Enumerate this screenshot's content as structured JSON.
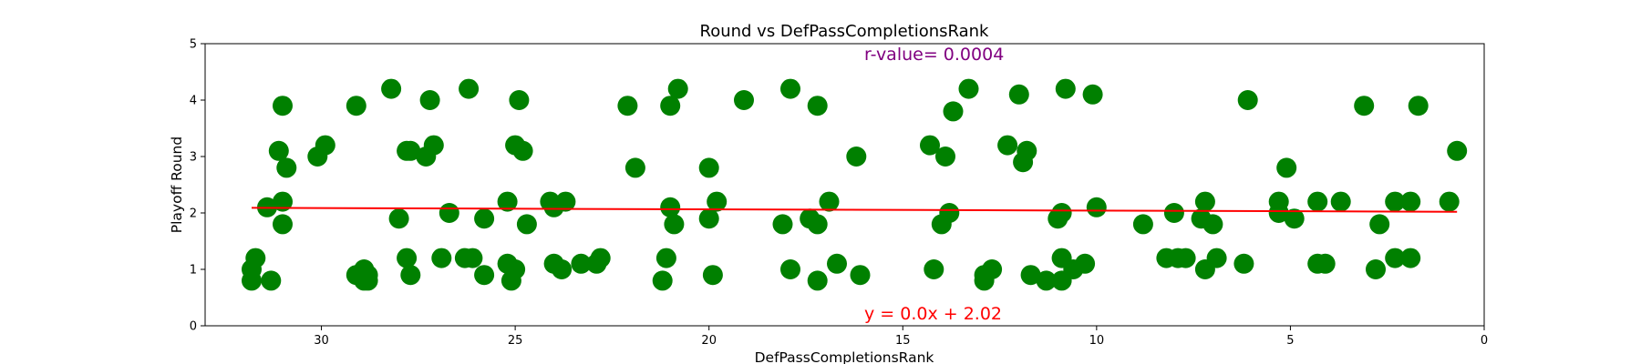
{
  "chart_data": {
    "type": "scatter",
    "title": "Round vs DefPassCompletionsRank",
    "xlabel": "DefPassCompletionsRank",
    "ylabel": "Playoff Round",
    "xlim": [
      33,
      0
    ],
    "ylim": [
      0,
      5
    ],
    "x_inverted": true,
    "xticks": [
      30,
      25,
      20,
      15,
      10,
      5,
      0
    ],
    "yticks": [
      0,
      1,
      2,
      3,
      4,
      5
    ],
    "grid": false,
    "marker_color": "#008000",
    "line_color": "#ff0000",
    "r_text": "r-value= 0.0004",
    "r_text_color": "#800080",
    "equation_text": "y = 0.0x + 2.02",
    "equation_text_color": "#ff0000",
    "fit_line": {
      "slope": 0.0022,
      "intercept": 2.02,
      "x_range": [
        31.8,
        0.7
      ]
    },
    "points": [
      [
        31.8,
        1.0
      ],
      [
        31.8,
        0.8
      ],
      [
        31.7,
        1.2
      ],
      [
        31.4,
        2.1
      ],
      [
        31.3,
        0.8
      ],
      [
        31.1,
        3.1
      ],
      [
        31.0,
        3.9
      ],
      [
        31.0,
        2.2
      ],
      [
        31.0,
        1.8
      ],
      [
        30.9,
        2.8
      ],
      [
        30.1,
        3.0
      ],
      [
        29.9,
        3.2
      ],
      [
        29.1,
        3.9
      ],
      [
        29.1,
        0.9
      ],
      [
        28.9,
        1.0
      ],
      [
        28.9,
        0.8
      ],
      [
        28.8,
        0.8
      ],
      [
        28.8,
        0.9
      ],
      [
        28.2,
        4.2
      ],
      [
        28.0,
        1.9
      ],
      [
        27.8,
        3.1
      ],
      [
        27.7,
        3.1
      ],
      [
        27.8,
        1.2
      ],
      [
        27.7,
        0.9
      ],
      [
        27.3,
        3.0
      ],
      [
        27.2,
        4.0
      ],
      [
        27.1,
        3.2
      ],
      [
        26.9,
        1.2
      ],
      [
        26.7,
        2.0
      ],
      [
        26.3,
        1.2
      ],
      [
        26.2,
        4.2
      ],
      [
        26.1,
        1.2
      ],
      [
        25.8,
        1.9
      ],
      [
        25.8,
        0.9
      ],
      [
        25.2,
        2.2
      ],
      [
        25.2,
        1.1
      ],
      [
        25.1,
        0.8
      ],
      [
        25.0,
        1.0
      ],
      [
        25.0,
        3.2
      ],
      [
        24.9,
        4.0
      ],
      [
        24.8,
        3.1
      ],
      [
        24.7,
        1.8
      ],
      [
        24.1,
        2.2
      ],
      [
        24.0,
        2.1
      ],
      [
        24.0,
        1.1
      ],
      [
        23.8,
        1.0
      ],
      [
        23.7,
        2.2
      ],
      [
        23.3,
        1.1
      ],
      [
        22.9,
        1.1
      ],
      [
        22.8,
        1.2
      ],
      [
        22.1,
        3.9
      ],
      [
        21.9,
        2.8
      ],
      [
        21.2,
        0.8
      ],
      [
        21.1,
        1.2
      ],
      [
        21.0,
        3.9
      ],
      [
        21.0,
        2.1
      ],
      [
        20.9,
        1.8
      ],
      [
        20.8,
        4.2
      ],
      [
        20.0,
        2.8
      ],
      [
        20.0,
        1.9
      ],
      [
        19.9,
        0.9
      ],
      [
        19.8,
        2.2
      ],
      [
        19.1,
        4.0
      ],
      [
        18.1,
        1.8
      ],
      [
        17.9,
        4.2
      ],
      [
        17.9,
        1.0
      ],
      [
        17.4,
        1.9
      ],
      [
        17.2,
        3.9
      ],
      [
        17.2,
        1.8
      ],
      [
        17.2,
        0.8
      ],
      [
        16.9,
        2.2
      ],
      [
        16.7,
        1.1
      ],
      [
        16.2,
        3.0
      ],
      [
        16.1,
        0.9
      ],
      [
        14.3,
        3.2
      ],
      [
        14.2,
        1.0
      ],
      [
        14.0,
        1.8
      ],
      [
        13.9,
        3.0
      ],
      [
        13.8,
        2.0
      ],
      [
        13.7,
        3.8
      ],
      [
        13.3,
        4.2
      ],
      [
        12.9,
        0.8
      ],
      [
        12.9,
        0.9
      ],
      [
        12.7,
        1.0
      ],
      [
        12.3,
        3.2
      ],
      [
        12.0,
        4.1
      ],
      [
        11.9,
        2.9
      ],
      [
        11.8,
        3.1
      ],
      [
        11.7,
        0.9
      ],
      [
        11.3,
        0.8
      ],
      [
        11.0,
        1.9
      ],
      [
        10.9,
        1.2
      ],
      [
        10.9,
        2.0
      ],
      [
        10.9,
        0.8
      ],
      [
        10.8,
        4.2
      ],
      [
        10.6,
        1.0
      ],
      [
        10.3,
        1.1
      ],
      [
        10.1,
        4.1
      ],
      [
        10.0,
        2.1
      ],
      [
        8.8,
        1.8
      ],
      [
        8.2,
        1.2
      ],
      [
        8.0,
        2.0
      ],
      [
        7.9,
        1.2
      ],
      [
        7.7,
        1.2
      ],
      [
        7.3,
        1.9
      ],
      [
        7.2,
        2.2
      ],
      [
        7.2,
        1.0
      ],
      [
        7.0,
        1.8
      ],
      [
        6.9,
        1.2
      ],
      [
        6.2,
        1.1
      ],
      [
        6.1,
        4.0
      ],
      [
        5.3,
        2.2
      ],
      [
        5.3,
        2.0
      ],
      [
        5.1,
        2.8
      ],
      [
        4.9,
        1.9
      ],
      [
        4.3,
        2.2
      ],
      [
        4.3,
        1.1
      ],
      [
        4.1,
        1.1
      ],
      [
        3.7,
        2.2
      ],
      [
        3.1,
        3.9
      ],
      [
        2.8,
        1.0
      ],
      [
        2.7,
        1.8
      ],
      [
        2.3,
        2.2
      ],
      [
        2.3,
        1.2
      ],
      [
        1.9,
        2.2
      ],
      [
        1.9,
        1.2
      ],
      [
        1.7,
        3.9
      ],
      [
        0.9,
        2.2
      ],
      [
        0.7,
        3.1
      ]
    ]
  }
}
